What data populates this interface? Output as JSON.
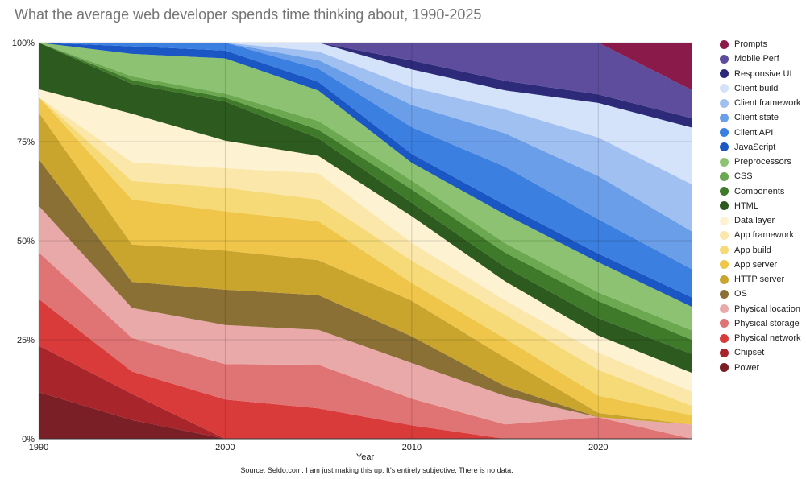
{
  "title": "What the average web developer spends time thinking about, 1990-2025",
  "source": "Source: Seldo.com. I am just making this up. It's entirely subjective. There is no data.",
  "chart_data": {
    "type": "area",
    "stacked": true,
    "normalized": true,
    "title": "What the average web developer spends time thinking about, 1990-2025",
    "xlabel": "Year",
    "ylabel": "",
    "xlim": [
      1990,
      2025
    ],
    "ylim": [
      0,
      100
    ],
    "x_ticks": [
      {
        "value": 1990,
        "label": "1990"
      },
      {
        "value": 2000,
        "label": "2000"
      },
      {
        "value": 2010,
        "label": "2010"
      },
      {
        "value": 2020,
        "label": "2020"
      }
    ],
    "y_ticks": [
      {
        "value": 0,
        "label": "0%"
      },
      {
        "value": 25,
        "label": "25%"
      },
      {
        "value": 50,
        "label": "50%"
      },
      {
        "value": 75,
        "label": "75%"
      },
      {
        "value": 100,
        "label": "100%"
      }
    ],
    "grid": true,
    "legend_position": "right",
    "x": [
      1990,
      1995,
      2000,
      2005,
      2010,
      2015,
      2020,
      2025
    ],
    "series": [
      {
        "name": "Power",
        "color": "#7a1f25",
        "values": [
          12,
          5,
          0,
          0,
          0,
          0,
          0,
          0
        ]
      },
      {
        "name": "Chipset",
        "color": "#a8262b",
        "values": [
          12,
          7,
          0,
          0,
          0,
          0,
          0,
          0
        ]
      },
      {
        "name": "Physical network",
        "color": "#d93b3b",
        "values": [
          12,
          6,
          10,
          7,
          3,
          0,
          0,
          0
        ]
      },
      {
        "name": "Physical storage",
        "color": "#e07373",
        "values": [
          12,
          9,
          9,
          10,
          6,
          3,
          5,
          0
        ]
      },
      {
        "name": "Physical location",
        "color": "#eaa9a9",
        "values": [
          12,
          8,
          10,
          8,
          8,
          6,
          0,
          3
        ]
      },
      {
        "name": "OS",
        "color": "#8a7035",
        "values": [
          12,
          7,
          9,
          8,
          6,
          2,
          0,
          0
        ]
      },
      {
        "name": "HTTP server",
        "color": "#c9a52e",
        "values": [
          12,
          10,
          10,
          8,
          8,
          6,
          1,
          0
        ]
      },
      {
        "name": "App server",
        "color": "#efc64a",
        "values": [
          4,
          12,
          10,
          9,
          4,
          4,
          4,
          2
        ]
      },
      {
        "name": "App build",
        "color": "#f7da78",
        "values": [
          0,
          5,
          6,
          5,
          5,
          5,
          6,
          2
        ]
      },
      {
        "name": "App framework",
        "color": "#fbe7a9",
        "values": [
          0,
          5,
          5,
          6,
          4,
          3,
          4,
          3
        ]
      },
      {
        "name": "Data layer",
        "color": "#fdf3d3",
        "values": [
          2,
          13,
          7,
          4,
          6,
          4,
          4,
          4
        ]
      },
      {
        "name": "HTML",
        "color": "#2d5a1e",
        "values": [
          12,
          8,
          10,
          4,
          3,
          3,
          4,
          4
        ]
      },
      {
        "name": "Components",
        "color": "#3f7a2a",
        "values": [
          0,
          1,
          1,
          2,
          3,
          3,
          4,
          3
        ]
      },
      {
        "name": "CSS",
        "color": "#6ba84f",
        "values": [
          0,
          1,
          1,
          2,
          2,
          2,
          2,
          2
        ]
      },
      {
        "name": "Preprocessors",
        "color": "#8cc271",
        "values": [
          0,
          6,
          9,
          7,
          4,
          6,
          7,
          5
        ]
      },
      {
        "name": "JavaScript",
        "color": "#1a57c4",
        "values": [
          0,
          2,
          2,
          2,
          2,
          2,
          2,
          2
        ]
      },
      {
        "name": "Client API",
        "color": "#3b7fe0",
        "values": [
          0,
          1,
          2,
          3,
          6,
          8,
          8,
          6
        ]
      },
      {
        "name": "Client state",
        "color": "#6b9ee8",
        "values": [
          0,
          0,
          0,
          2,
          5,
          7,
          10,
          8
        ]
      },
      {
        "name": "Client framework",
        "color": "#a1c0f2",
        "values": [
          0,
          0,
          0,
          2,
          4,
          5,
          9,
          10
        ]
      },
      {
        "name": "Client build",
        "color": "#d4e2fa",
        "values": [
          0,
          0,
          0,
          2,
          4,
          4,
          8,
          12
        ]
      },
      {
        "name": "Responsive UI",
        "color": "#2d2a7a",
        "values": [
          0,
          0,
          0,
          0,
          2,
          2,
          2,
          2
        ]
      },
      {
        "name": "Mobile Perf",
        "color": "#5e4d9c",
        "values": [
          0,
          0,
          0,
          0,
          4,
          8,
          12,
          6
        ]
      },
      {
        "name": "Prompts",
        "color": "#8a1a4a",
        "values": [
          0,
          0,
          0,
          0,
          0,
          0,
          0,
          10
        ]
      }
    ]
  }
}
